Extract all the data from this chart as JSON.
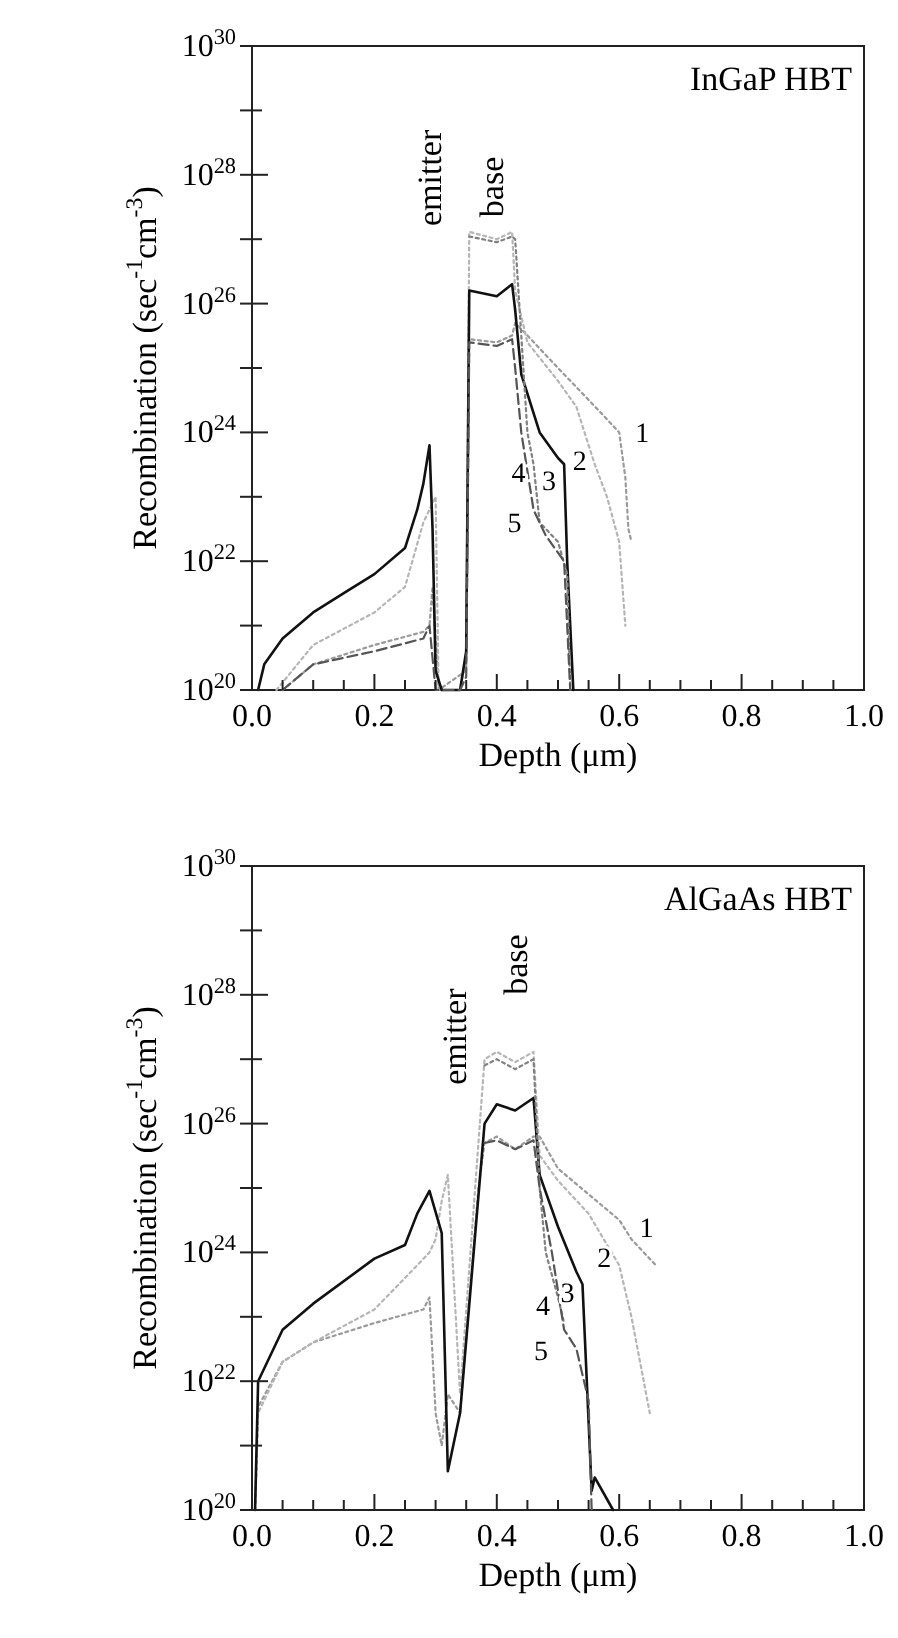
{
  "chart_data": [
    {
      "type": "line",
      "title": "InGaP HBT",
      "xlabel": "Depth (μm)",
      "ylabel": "Recombination (sec$^{-1}$cm$^{-3}$)",
      "log": "y",
      "xlim": [
        0,
        1
      ],
      "ylim": [
        1e+20,
        1e+30
      ],
      "xticks": [
        {
          "value": 0,
          "label": "0.0"
        },
        {
          "value": 0.05,
          "label": null
        },
        {
          "value": 0.1,
          "label": null
        },
        {
          "value": 0.15,
          "label": null
        },
        {
          "value": 0.2,
          "label": "0.2"
        },
        {
          "value": 0.25,
          "label": null
        },
        {
          "value": 0.3,
          "label": null
        },
        {
          "value": 0.35,
          "label": null
        },
        {
          "value": 0.4,
          "label": "0.4"
        },
        {
          "value": 0.45,
          "label": null
        },
        {
          "value": 0.5,
          "label": null
        },
        {
          "value": 0.55,
          "label": null
        },
        {
          "value": 0.6,
          "label": "0.6"
        },
        {
          "value": 0.65,
          "label": null
        },
        {
          "value": 0.7,
          "label": null
        },
        {
          "value": 0.75,
          "label": null
        },
        {
          "value": 0.8,
          "label": "0.8"
        },
        {
          "value": 0.85,
          "label": null
        },
        {
          "value": 0.9,
          "label": null
        },
        {
          "value": 0.95,
          "label": null
        },
        {
          "value": 1,
          "label": "1.0"
        }
      ],
      "yticks": [
        {
          "value": 1e+20,
          "label": "10$^{20}$"
        },
        {
          "value": 1e+21,
          "label": null
        },
        {
          "value": 1e+22,
          "label": "10$^{22}$"
        },
        {
          "value": 1e+23,
          "label": null
        },
        {
          "value": 1e+24,
          "label": "10$^{24}$"
        },
        {
          "value": 1e+25,
          "label": null
        },
        {
          "value": 1e+26,
          "label": "10$^{26}$"
        },
        {
          "value": 1e+27,
          "label": null
        },
        {
          "value": 1e+28,
          "label": "10$^{28}$"
        },
        {
          "value": 1e+29,
          "label": null
        },
        {
          "value": 1e+30,
          "label": "10$^{30}$"
        }
      ],
      "annotations": [
        "emitter",
        "base"
      ],
      "series": [
        {
          "name": "1",
          "color": "#9a9a9a",
          "line_style": "dotted",
          "x": [
            0.05,
            0.1,
            0.2,
            0.28,
            0.29,
            0.295,
            0.3,
            0.305,
            0.35,
            0.355,
            0.4,
            0.425,
            0.43,
            0.45,
            0.5,
            0.55,
            0.58,
            0.6,
            0.61,
            0.615,
            0.62
          ],
          "values": [
            1e+20,
            2.5e+20,
            5e+20,
            8e+20,
            1e+21,
            4e+21,
            6.3e+20,
            1e+20,
            2e+20,
            2.8e+25,
            2.5e+25,
            3.2e+25,
            5e+25,
            3.2e+25,
            1e+25,
            3.2e+24,
            1.6e+24,
            1e+24,
            2e+23,
            3.2e+22,
            2e+22
          ]
        },
        {
          "name": "2",
          "color": "#b5b5b5",
          "line_style": "dotted",
          "x": [
            0.04,
            0.1,
            0.2,
            0.25,
            0.28,
            0.3,
            0.305,
            0.34,
            0.35,
            0.355,
            0.4,
            0.425,
            0.43,
            0.45,
            0.5,
            0.53,
            0.56,
            0.58,
            0.6,
            0.61
          ],
          "values": [
            1e+20,
            5e+20,
            1.6e+21,
            4e+21,
            4e+22,
            1e+23,
            1e+20,
            1e+20,
            3.2e+20,
            1.3e+27,
            1e+27,
            1.3e+27,
            1.6e+26,
            2.5e+25,
            6.3e+24,
            2.5e+24,
            3.2e+23,
            1e+23,
            2e+22,
            1e+21
          ]
        },
        {
          "name": "3",
          "color": "#111111",
          "line_style": "solid",
          "x": [
            0.01,
            0.02,
            0.05,
            0.1,
            0.15,
            0.2,
            0.25,
            0.27,
            0.28,
            0.29,
            0.295,
            0.3,
            0.31,
            0.34,
            0.35,
            0.355,
            0.4,
            0.425,
            0.43,
            0.44,
            0.47,
            0.5,
            0.51,
            0.515,
            0.52,
            0.525
          ],
          "values": [
            1e+20,
            2.5e+20,
            6.3e+20,
            1.6e+21,
            3.2e+21,
            6.3e+21,
            1.6e+22,
            6.3e+22,
            1.6e+23,
            6.3e+23,
            3.2e+22,
            2e+20,
            1e+20,
            1e+20,
            4e+20,
            1.6e+26,
            1.3e+26,
            2e+26,
            8e+25,
            8e+24,
            1e+24,
            4e+23,
            3.2e+23,
            1e+22,
            1e+21,
            1e+20
          ]
        },
        {
          "name": "4",
          "color": "#808080",
          "line_style": "dotted",
          "x": [
            0.355,
            0.4,
            0.425,
            0.43,
            0.44,
            0.45,
            0.46,
            0.47,
            0.5,
            0.515,
            0.52
          ],
          "values": [
            1.1e+27,
            9e+26,
            1.1e+27,
            1e+27,
            3.2e+25,
            1e+24,
            3.2e+23,
            4e+22,
            2e+22,
            6.3e+21,
            1e+20
          ]
        },
        {
          "name": "5",
          "color": "#555555",
          "line_style": "dashed",
          "x": [
            0.05,
            0.1,
            0.2,
            0.28,
            0.29,
            0.3,
            0.34,
            0.35,
            0.355,
            0.4,
            0.425,
            0.43,
            0.44,
            0.46,
            0.48,
            0.51,
            0.52
          ],
          "values": [
            1e+20,
            2.5e+20,
            4e+20,
            6.3e+20,
            1e+21,
            1e+20,
            1e+20,
            1.6e+20,
            2.5e+25,
            2.2e+25,
            2.8e+25,
            1e+25,
            1e+24,
            6.3e+22,
            2.5e+22,
            1e+22,
            1e+20
          ]
        }
      ]
    },
    {
      "type": "line",
      "title": "AlGaAs HBT",
      "xlabel": "Depth (μm)",
      "ylabel": "Recombination (sec$^{-1}$cm$^{-3}$)",
      "log": "y",
      "xlim": [
        0,
        1
      ],
      "ylim": [
        1e+20,
        1e+30
      ],
      "xticks": [
        {
          "value": 0,
          "label": "0.0"
        },
        {
          "value": 0.05,
          "label": null
        },
        {
          "value": 0.1,
          "label": null
        },
        {
          "value": 0.15,
          "label": null
        },
        {
          "value": 0.2,
          "label": "0.2"
        },
        {
          "value": 0.25,
          "label": null
        },
        {
          "value": 0.3,
          "label": null
        },
        {
          "value": 0.35,
          "label": null
        },
        {
          "value": 0.4,
          "label": "0.4"
        },
        {
          "value": 0.45,
          "label": null
        },
        {
          "value": 0.5,
          "label": null
        },
        {
          "value": 0.55,
          "label": null
        },
        {
          "value": 0.6,
          "label": "0.6"
        },
        {
          "value": 0.65,
          "label": null
        },
        {
          "value": 0.7,
          "label": null
        },
        {
          "value": 0.75,
          "label": null
        },
        {
          "value": 0.8,
          "label": "0.8"
        },
        {
          "value": 0.85,
          "label": null
        },
        {
          "value": 0.9,
          "label": null
        },
        {
          "value": 0.95,
          "label": null
        },
        {
          "value": 1,
          "label": "1.0"
        }
      ],
      "yticks": [
        {
          "value": 1e+20,
          "label": "10$^{20}$"
        },
        {
          "value": 1e+21,
          "label": null
        },
        {
          "value": 1e+22,
          "label": "10$^{22}$"
        },
        {
          "value": 1e+23,
          "label": null
        },
        {
          "value": 1e+24,
          "label": "10$^{24}$"
        },
        {
          "value": 1e+25,
          "label": null
        },
        {
          "value": 1e+26,
          "label": "10$^{26}$"
        },
        {
          "value": 1e+27,
          "label": null
        },
        {
          "value": 1e+28,
          "label": "10$^{28}$"
        },
        {
          "value": 1e+29,
          "label": null
        },
        {
          "value": 1e+30,
          "label": "10$^{30}$"
        }
      ],
      "annotations": [
        "emitter",
        "base"
      ],
      "series": [
        {
          "name": "1",
          "color": "#9a9a9a",
          "line_style": "dotted",
          "x": [
            0.005,
            0.01,
            0.05,
            0.1,
            0.2,
            0.28,
            0.29,
            0.3,
            0.31,
            0.32,
            0.34,
            0.37,
            0.38,
            0.4,
            0.43,
            0.46,
            0.47,
            0.5,
            0.55,
            0.6,
            0.62,
            0.66
          ],
          "values": [
            1e+20,
            4e+21,
            2e+22,
            4e+22,
            8e+22,
            1.3e+23,
            2e+23,
            3.2e+21,
            1e+21,
            6.3e+21,
            3.2e+21,
            1e+25,
            5e+25,
            6.3e+25,
            4e+25,
            6.3e+25,
            6.3e+25,
            2e+25,
            8e+24,
            3.2e+24,
            1.6e+24,
            6.3e+23
          ]
        },
        {
          "name": "2",
          "color": "#b5b5b5",
          "line_style": "dotted",
          "x": [
            0.005,
            0.01,
            0.05,
            0.1,
            0.2,
            0.27,
            0.29,
            0.3,
            0.31,
            0.32,
            0.34,
            0.38,
            0.4,
            0.43,
            0.46,
            0.47,
            0.5,
            0.55,
            0.6,
            0.62,
            0.65
          ],
          "values": [
            1e+20,
            3.2e+21,
            2e+22,
            4e+22,
            1.3e+23,
            6.3e+23,
            1e+24,
            1.6e+24,
            6.3e+24,
            1.6e+25,
            6.3e+21,
            1e+27,
            1.3e+27,
            9e+26,
            1.3e+27,
            3.2e+25,
            1.3e+25,
            4e+24,
            6.3e+23,
            1e+23,
            3.2e+21
          ]
        },
        {
          "name": "3",
          "color": "#111111",
          "line_style": "solid",
          "x": [
            0.005,
            0.01,
            0.05,
            0.1,
            0.2,
            0.25,
            0.27,
            0.29,
            0.31,
            0.32,
            0.34,
            0.38,
            0.4,
            0.43,
            0.46,
            0.47,
            0.5,
            0.53,
            0.54,
            0.555,
            0.56,
            0.59
          ],
          "values": [
            1e+20,
            1e+22,
            6.3e+22,
            1.6e+23,
            8e+23,
            1.3e+24,
            4e+24,
            9e+24,
            2e+24,
            4e+20,
            3.2e+21,
            1e+26,
            2e+26,
            1.6e+26,
            2.5e+26,
            1.6e+25,
            2.5e+24,
            5e+23,
            3.2e+23,
            2e+20,
            3.2e+20,
            1e+20
          ]
        },
        {
          "name": "4",
          "color": "#808080",
          "line_style": "dotted",
          "x": [
            0.38,
            0.4,
            0.43,
            0.46,
            0.47,
            0.48,
            0.5,
            0.51
          ],
          "values": [
            8e+26,
            1e+27,
            7e+26,
            1e+27,
            1e+25,
            1e+24,
            2e+23,
            8e+22
          ]
        },
        {
          "name": "5",
          "color": "#555555",
          "line_style": "dashed",
          "x": [
            0.38,
            0.4,
            0.43,
            0.46,
            0.47,
            0.49,
            0.51,
            0.53,
            0.55,
            0.555
          ],
          "values": [
            5e+25,
            5.5e+25,
            4e+25,
            5.5e+25,
            1e+25,
            1e+24,
            6.3e+22,
            3.2e+22,
            5e+21,
            1e+20
          ]
        }
      ]
    }
  ]
}
